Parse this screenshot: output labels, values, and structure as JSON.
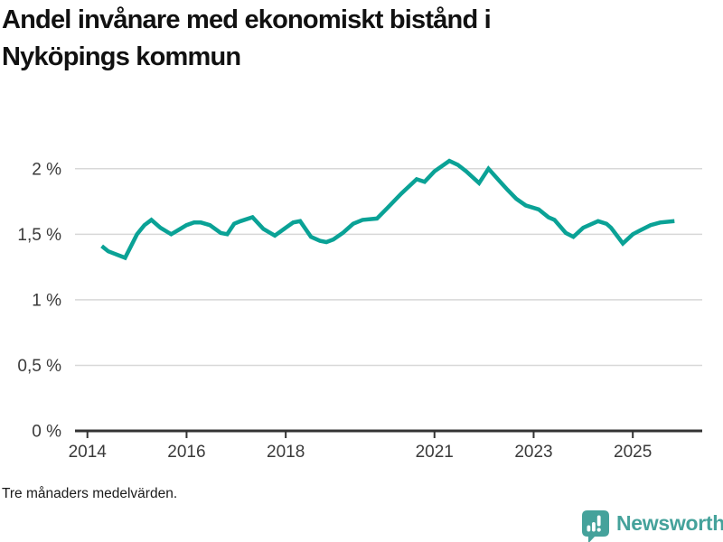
{
  "title": {
    "lines": [
      "Andel invånare med ekonomiskt bistånd i",
      "Nyköpings kommun"
    ]
  },
  "footnote": "Tre månaders medelvärden.",
  "branding": {
    "name": "Newsworthy",
    "icon": "newsworthy-speech-bubble-chart-icon",
    "color": "#45a29b"
  },
  "colors": {
    "background": "#ffffff",
    "line": "#0aa296",
    "grid": "#d8d8d8",
    "axis": "#333333",
    "tick_text": "#3a3a3a",
    "title_text": "#111111"
  },
  "chart_data": {
    "type": "line",
    "title": "Andel invånare med ekonomiskt bistånd i Nyköpings kommun",
    "subtitle": "Tre månaders medelvärden.",
    "unit": "%",
    "grid": true,
    "legend_position": "none",
    "xlim": [
      2013.75,
      2026.4
    ],
    "ylim": [
      0,
      2.15
    ],
    "y_ticks": [
      {
        "value": 0,
        "label": "0 %"
      },
      {
        "value": 0.5,
        "label": "0,5 %"
      },
      {
        "value": 1,
        "label": "1 %"
      },
      {
        "value": 1.5,
        "label": "1,5 %"
      },
      {
        "value": 2,
        "label": "2 %"
      }
    ],
    "x_ticks": [
      {
        "value": 2014,
        "label": "2014"
      },
      {
        "value": 2016,
        "label": "2016"
      },
      {
        "value": 2018,
        "label": "2018"
      },
      {
        "value": 2021,
        "label": "2021"
      },
      {
        "value": 2023,
        "label": "2023"
      },
      {
        "value": 2025,
        "label": "2025"
      }
    ],
    "series": [
      {
        "name": "Andel invånare med ekonomiskt bistånd (%)",
        "points": [
          [
            2014.29,
            1.41
          ],
          [
            2014.42,
            1.37
          ],
          [
            2014.76,
            1.32
          ],
          [
            2015.0,
            1.5
          ],
          [
            2015.15,
            1.57
          ],
          [
            2015.29,
            1.61
          ],
          [
            2015.47,
            1.55
          ],
          [
            2015.69,
            1.5
          ],
          [
            2015.87,
            1.54
          ],
          [
            2016.0,
            1.57
          ],
          [
            2016.15,
            1.59
          ],
          [
            2016.29,
            1.59
          ],
          [
            2016.47,
            1.57
          ],
          [
            2016.69,
            1.51
          ],
          [
            2016.82,
            1.5
          ],
          [
            2016.96,
            1.58
          ],
          [
            2017.09,
            1.6
          ],
          [
            2017.33,
            1.63
          ],
          [
            2017.55,
            1.54
          ],
          [
            2017.78,
            1.49
          ],
          [
            2018.0,
            1.55
          ],
          [
            2018.15,
            1.59
          ],
          [
            2018.29,
            1.6
          ],
          [
            2018.51,
            1.48
          ],
          [
            2018.69,
            1.45
          ],
          [
            2018.82,
            1.44
          ],
          [
            2018.96,
            1.46
          ],
          [
            2019.15,
            1.51
          ],
          [
            2019.36,
            1.58
          ],
          [
            2019.55,
            1.61
          ],
          [
            2019.84,
            1.62
          ],
          [
            2020.05,
            1.7
          ],
          [
            2020.33,
            1.81
          ],
          [
            2020.64,
            1.92
          ],
          [
            2020.8,
            1.9
          ],
          [
            2021.0,
            1.98
          ],
          [
            2021.3,
            2.06
          ],
          [
            2021.47,
            2.03
          ],
          [
            2021.64,
            1.98
          ],
          [
            2021.9,
            1.89
          ],
          [
            2022.09,
            2.0
          ],
          [
            2022.3,
            1.91
          ],
          [
            2022.47,
            1.84
          ],
          [
            2022.65,
            1.77
          ],
          [
            2022.84,
            1.72
          ],
          [
            2023.1,
            1.69
          ],
          [
            2023.3,
            1.63
          ],
          [
            2023.42,
            1.61
          ],
          [
            2023.65,
            1.51
          ],
          [
            2023.8,
            1.48
          ],
          [
            2024.0,
            1.55
          ],
          [
            2024.3,
            1.6
          ],
          [
            2024.47,
            1.58
          ],
          [
            2024.56,
            1.55
          ],
          [
            2024.8,
            1.43
          ],
          [
            2025.0,
            1.5
          ],
          [
            2025.15,
            1.53
          ],
          [
            2025.36,
            1.57
          ],
          [
            2025.55,
            1.59
          ],
          [
            2025.84,
            1.6
          ]
        ]
      }
    ]
  }
}
